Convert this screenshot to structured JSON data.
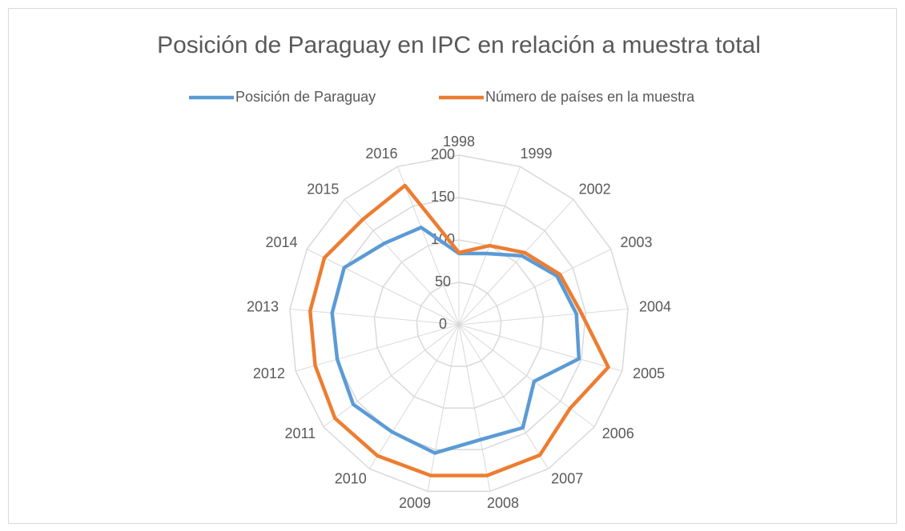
{
  "chart_data": {
    "type": "radar",
    "title": "Posición de Paraguay en IPC en relación a muestra total",
    "categories": [
      "1998",
      "1999",
      "2002",
      "2003",
      "2004",
      "2005",
      "2006",
      "2007",
      "2008",
      "2009",
      "2010",
      "2011",
      "2012",
      "2013",
      "2014",
      "2015",
      "2016"
    ],
    "series": [
      {
        "name": "Posición de Paraguay",
        "color": "#5b9bd5",
        "values": [
          84,
          90,
          110,
          129,
          139,
          147,
          111,
          143,
          138,
          154,
          149,
          156,
          149,
          150,
          151,
          130,
          123
        ]
      },
      {
        "name": "Número de países en la muestra",
        "color": "#ed7d31",
        "values": [
          85,
          100,
          115,
          133,
          145,
          183,
          164,
          181,
          181,
          181,
          182,
          183,
          176,
          176,
          177,
          168,
          176
        ]
      }
    ],
    "rlim": [
      0,
      200
    ],
    "rticks": [
      0,
      50,
      100,
      150,
      200
    ],
    "grid": true,
    "legend": "top"
  }
}
